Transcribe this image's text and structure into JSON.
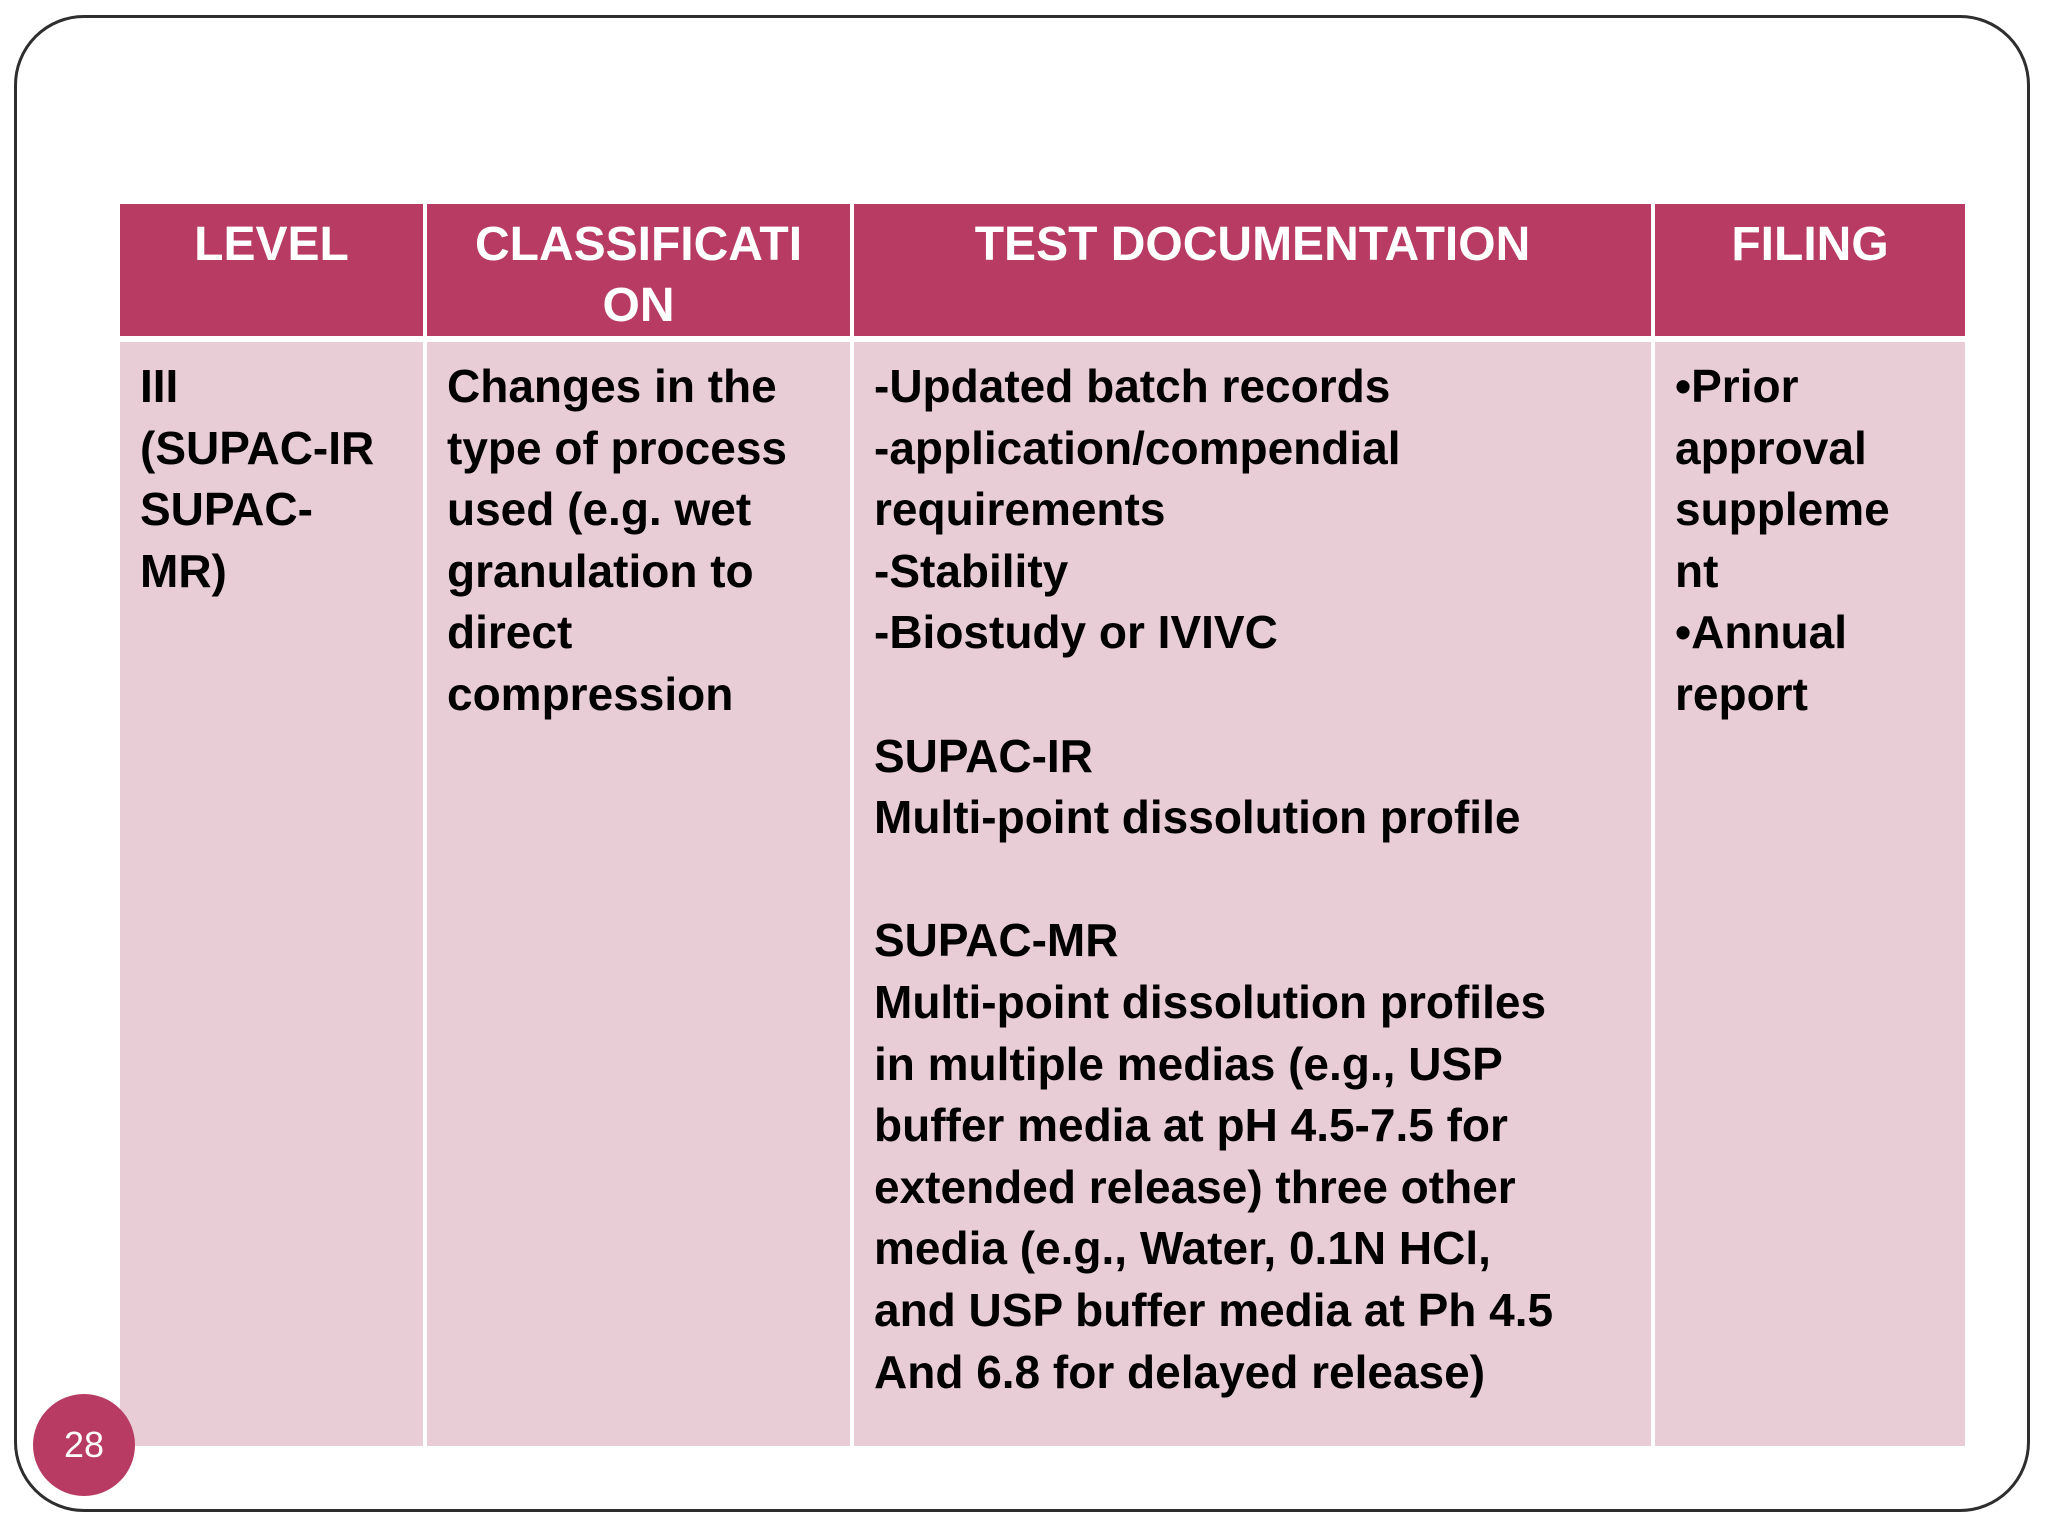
{
  "slide": {
    "page_number": "28",
    "colors": {
      "header_bg": "#b83b64",
      "body_bg": "#e8cdd6",
      "page_badge": "#b83b64"
    }
  },
  "table": {
    "headers": [
      "LEVEL",
      "CLASSIFICATI ON",
      "TEST DOCUMENTATION",
      "FILING"
    ],
    "row": {
      "level": "III\n(SUPAC-IR\nSUPAC-\nMR)",
      "classification": "Changes in the\ntype of process\nused (e.g. wet\ngranulation to\ndirect\ncompression",
      "test_documentation": "-Updated batch records\n-application/compendial\nrequirements\n-Stability\n-Biostudy or IVIVC\n\nSUPAC-IR\nMulti-point dissolution profile\n\nSUPAC-MR\nMulti-point dissolution profiles\nin multiple medias (e.g., USP\nbuffer media at pH 4.5-7.5 for\nextended release) three other\nmedia (e.g., Water, 0.1N HCl,\nand USP buffer media at Ph 4.5\nAnd 6.8 for delayed release)",
      "filing": "•Prior\napproval\nsuppleme\nnt\n•Annual\nreport"
    }
  }
}
